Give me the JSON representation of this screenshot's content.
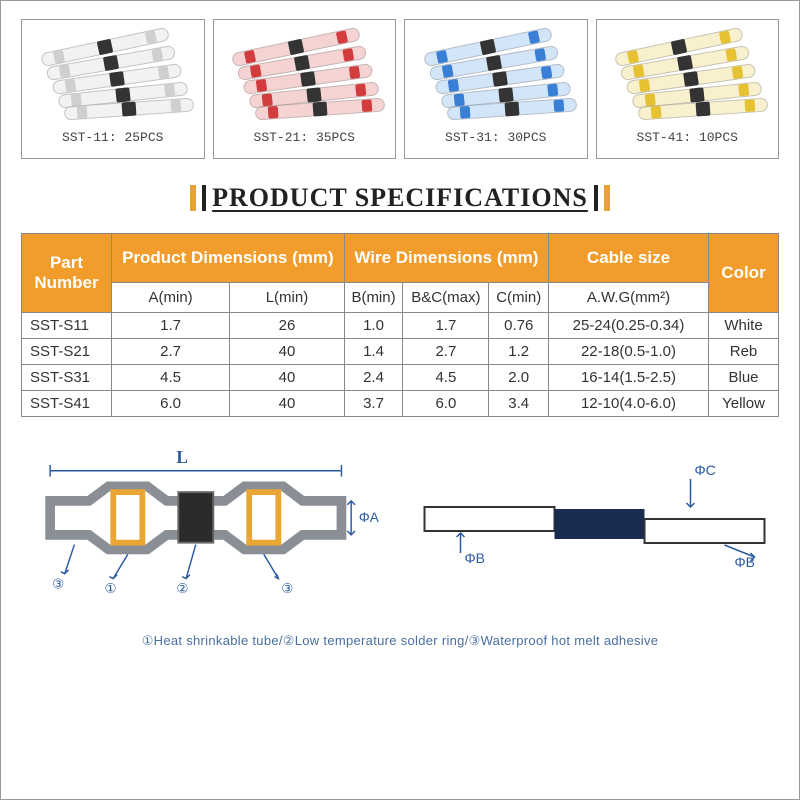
{
  "products": [
    {
      "label": "SST-11: 25PCS",
      "ring_color": "#cfcfcf",
      "tube_tint": "rgba(230,230,230,0.5)"
    },
    {
      "label": "SST-21: 35PCS",
      "ring_color": "#d23c3c",
      "tube_tint": "rgba(220,80,80,0.25)"
    },
    {
      "label": "SST-31: 30PCS",
      "ring_color": "#3a7fd6",
      "tube_tint": "rgba(80,150,230,0.25)"
    },
    {
      "label": "SST-41: 10PCS",
      "ring_color": "#e6c233",
      "tube_tint": "rgba(230,200,60,0.25)"
    }
  ],
  "title": "PRODUCT SPECIFICATIONS",
  "title_bar_yellow": "#e8a23a",
  "title_bar_black": "#222222",
  "table": {
    "header_bg": "#f29c2b",
    "header_color": "#ffffff",
    "border_color": "#888888",
    "headers": {
      "part": "Part Number",
      "prod_dim": "Product Dimensions (mm)",
      "wire_dim": "Wire Dimensions (mm)",
      "cable": "Cable size",
      "color": "Color"
    },
    "subheaders": {
      "a": "A(min)",
      "l": "L(min)",
      "b": "B(min)",
      "bc": "B&C(max)",
      "c": "C(min)",
      "awg": "A.W.G(mm²)"
    },
    "rows": [
      {
        "part": "SST-S11",
        "a": "1.7",
        "l": "26",
        "b": "1.0",
        "bc": "1.7",
        "c": "0.76",
        "awg": "25-24(0.25-0.34)",
        "color": "White"
      },
      {
        "part": "SST-S21",
        "a": "2.7",
        "l": "40",
        "b": "1.4",
        "bc": "2.7",
        "c": "1.2",
        "awg": "22-18(0.5-1.0)",
        "color": "Reb"
      },
      {
        "part": "SST-S31",
        "a": "4.5",
        "l": "40",
        "b": "2.4",
        "bc": "4.5",
        "c": "2.0",
        "awg": "16-14(1.5-2.5)",
        "color": "Blue"
      },
      {
        "part": "SST-S41",
        "a": "6.0",
        "l": "40",
        "b": "3.7",
        "bc": "6.0",
        "c": "3.4",
        "awg": "12-10(4.0-6.0)",
        "color": "Yellow"
      }
    ]
  },
  "diagram": {
    "label_L": "L",
    "label_A": "ΦA",
    "label_B": "ΦB",
    "label_C": "ΦC",
    "circ1": "①",
    "circ2": "②",
    "circ3": "③",
    "tube_color": "#bfc3c8",
    "ring_yellow": "#e9a635",
    "ring_black": "#2b2b2b",
    "line_blue": "#3a6fb0",
    "wire_color": "#1a2b50"
  },
  "legend": "①Heat shrinkable tube/②Low temperature solder ring/③Waterproof hot melt adhesive"
}
